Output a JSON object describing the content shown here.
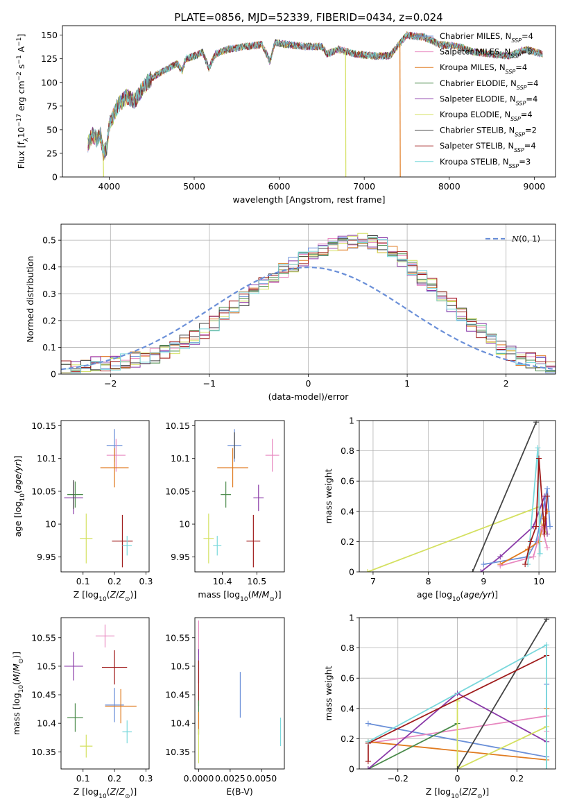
{
  "title": "PLATE=0856, MJD=52339, FIBERID=0434, z=0.024",
  "colors": {
    "Chabrier MILES": "#6a8fd8",
    "Salpeter MILES": "#e888c0",
    "Kroupa MILES": "#e07b20",
    "Chabrier ELODIE": "#4a8a4a",
    "Salpeter ELODIE": "#8a3aa8",
    "Kroupa ELODIE": "#d4e060",
    "Chabrier STELIB": "#444444",
    "Salpeter STELIB": "#a01c1c",
    "Kroupa STELIB": "#7ad8dc"
  },
  "chart_data": [
    {
      "id": "spectrum",
      "type": "line",
      "xlabel": "wavelength [Angstrom, rest frame]",
      "ylabel": "Flux [f_λ10^-17 erg cm^-2 s^-1 A^-1]",
      "xlim": [
        3450,
        9250
      ],
      "ylim": [
        0,
        160
      ],
      "xticks": [
        4000,
        5000,
        6000,
        7000,
        8000,
        9000
      ],
      "yticks": [
        0,
        25,
        50,
        75,
        100,
        125,
        150
      ],
      "legend_position": "upper right",
      "legend": [
        "Chabrier MILES, N_SSP=4",
        "Salpeter MILES, N_SSP=5",
        "Kroupa MILES, N_SSP=4",
        "Chabrier ELODIE, N_SSP=4",
        "Salpeter ELODIE, N_SSP=4",
        "Kroupa ELODIE, N_SSP=4",
        "Chabrier STELIB, N_SSP=2",
        "Salpeter STELIB, N_SSP=4",
        "Kroupa STELIB, N_SSP=3"
      ],
      "continuum": [
        [
          3750,
          35
        ],
        [
          3800,
          45
        ],
        [
          3850,
          40
        ],
        [
          3900,
          45
        ],
        [
          3930,
          25
        ],
        [
          3970,
          30
        ],
        [
          4000,
          55
        ],
        [
          4100,
          75
        ],
        [
          4200,
          85
        ],
        [
          4300,
          80
        ],
        [
          4400,
          95
        ],
        [
          4500,
          105
        ],
        [
          4600,
          110
        ],
        [
          4700,
          115
        ],
        [
          4800,
          120
        ],
        [
          4860,
          112
        ],
        [
          4900,
          125
        ],
        [
          5000,
          128
        ],
        [
          5100,
          132
        ],
        [
          5170,
          115
        ],
        [
          5250,
          130
        ],
        [
          5400,
          135
        ],
        [
          5600,
          138
        ],
        [
          5800,
          140
        ],
        [
          5890,
          122
        ],
        [
          5950,
          142
        ],
        [
          6100,
          140
        ],
        [
          6300,
          138
        ],
        [
          6500,
          138
        ],
        [
          6563,
          130
        ],
        [
          6700,
          135
        ],
        [
          6900,
          130
        ],
        [
          7100,
          128
        ],
        [
          7300,
          128
        ],
        [
          7500,
          150
        ],
        [
          7700,
          148
        ],
        [
          7900,
          140
        ],
        [
          8100,
          138
        ],
        [
          8300,
          132
        ],
        [
          8500,
          130
        ],
        [
          8700,
          128
        ],
        [
          8900,
          135
        ],
        [
          9100,
          130
        ]
      ],
      "dropouts": [
        {
          "x": 3930,
          "y": 0
        },
        {
          "x": 6780,
          "y": 0
        },
        {
          "x": 7420,
          "y": 0
        }
      ]
    },
    {
      "id": "residual-histogram",
      "type": "bar",
      "xlabel": "(data-model)/error",
      "ylabel": "Normed distribution",
      "xlim": [
        -2.5,
        2.5
      ],
      "ylim": [
        0,
        0.56
      ],
      "xticks": [
        -2,
        -1,
        0,
        1,
        2
      ],
      "yticks": [
        0.0,
        0.1,
        0.2,
        0.3,
        0.4,
        0.5
      ],
      "legend": [
        "N(0,1)"
      ],
      "legend_position": "upper right",
      "grid": true,
      "bin_width": 0.1,
      "bins_start": -2.5,
      "base": [
        0.02,
        0.025,
        0.035,
        0.04,
        0.04,
        0.045,
        0.05,
        0.055,
        0.06,
        0.07,
        0.08,
        0.1,
        0.12,
        0.14,
        0.16,
        0.19,
        0.22,
        0.25,
        0.28,
        0.31,
        0.34,
        0.37,
        0.39,
        0.41,
        0.43,
        0.45,
        0.47,
        0.48,
        0.49,
        0.5,
        0.5,
        0.49,
        0.48,
        0.46,
        0.43,
        0.4,
        0.36,
        0.33,
        0.29,
        0.26,
        0.22,
        0.19,
        0.16,
        0.13,
        0.1,
        0.08,
        0.06,
        0.05,
        0.04,
        0.03
      ],
      "gaussian": {
        "mean": 0,
        "sd": 1
      }
    },
    {
      "id": "age-vs-Z",
      "type": "scatter",
      "xlabel": "Z [log10(Z/Z_sun)]",
      "ylabel": "age [log10(age/yr)]",
      "xlim": [
        0.03,
        0.31
      ],
      "ylim": [
        9.927,
        10.158
      ],
      "xticks": [
        0.1,
        0.2,
        0.3
      ],
      "yticks": [
        9.95,
        10.0,
        10.05,
        10.1,
        10.15
      ],
      "points": [
        {
          "s": "Chabrier MILES",
          "x": 0.2,
          "y": 10.12,
          "xe": 0.025,
          "ye": 0.025
        },
        {
          "s": "Salpeter MILES",
          "x": 0.205,
          "y": 10.105,
          "xe": 0.03,
          "ye": 0.025
        },
        {
          "s": "Kroupa MILES",
          "x": 0.2,
          "y": 10.086,
          "xe": 0.045,
          "ye": 0.03
        },
        {
          "s": "Chabrier ELODIE",
          "x": 0.075,
          "y": 10.045,
          "xe": 0.025,
          "ye": 0.02
        },
        {
          "s": "Salpeter ELODIE",
          "x": 0.07,
          "y": 10.04,
          "xe": 0.03,
          "ye": 0.025
        },
        {
          "s": "Chabrier STELIB",
          "x": 0.07,
          "y": 10.045,
          "xe": 0.0,
          "ye": 0.022
        },
        {
          "s": "Kroupa ELODIE",
          "x": 0.11,
          "y": 9.978,
          "xe": 0.02,
          "ye": 0.038
        },
        {
          "s": "Salpeter STELIB",
          "x": 0.225,
          "y": 9.974,
          "xe": 0.033,
          "ye": 0.04
        },
        {
          "s": "Kroupa STELIB",
          "x": 0.24,
          "y": 9.967,
          "xe": 0.015,
          "ye": 0.015
        }
      ]
    },
    {
      "id": "age-vs-mass",
      "type": "scatter",
      "xlabel": "mass [log10(M/M_sun)]",
      "ylabel": "",
      "xlim": [
        10.32,
        10.58
      ],
      "ylim": [
        9.927,
        10.158
      ],
      "xticks": [
        10.4,
        10.5
      ],
      "yticks": [
        9.95,
        10.0,
        10.05,
        10.1,
        10.15
      ],
      "points": [
        {
          "s": "Chabrier MILES",
          "x": 10.435,
          "y": 10.12,
          "xe": 0.02,
          "ye": 0.025
        },
        {
          "s": "Salpeter MILES",
          "x": 10.545,
          "y": 10.105,
          "xe": 0.02,
          "ye": 0.025
        },
        {
          "s": "Kroupa MILES",
          "x": 10.43,
          "y": 10.086,
          "xe": 0.045,
          "ye": 0.03
        },
        {
          "s": "Chabrier ELODIE",
          "x": 10.41,
          "y": 10.045,
          "xe": 0.015,
          "ye": 0.02
        },
        {
          "s": "Salpeter ELODIE",
          "x": 10.505,
          "y": 10.04,
          "xe": 0.015,
          "ye": 0.02
        },
        {
          "s": "Chabrier STELIB",
          "x": 10.435,
          "y": 10.12,
          "xe": 0.0,
          "ye": 0.02
        },
        {
          "s": "Kroupa ELODIE",
          "x": 10.36,
          "y": 9.978,
          "xe": 0.015,
          "ye": 0.038
        },
        {
          "s": "Salpeter STELIB",
          "x": 10.49,
          "y": 9.974,
          "xe": 0.02,
          "ye": 0.04
        },
        {
          "s": "Kroupa STELIB",
          "x": 10.385,
          "y": 9.967,
          "xe": 0.012,
          "ye": 0.015
        }
      ]
    },
    {
      "id": "massweight-vs-age",
      "type": "line",
      "xlabel": "age [log10(age/yr)]",
      "ylabel": "mass weight",
      "xlim": [
        6.75,
        10.3
      ],
      "ylim": [
        0,
        1
      ],
      "xticks": [
        7,
        8,
        9,
        10
      ],
      "yticks": [
        0.0,
        0.2,
        0.4,
        0.6,
        0.8,
        1.0
      ],
      "grid": true,
      "series": [
        {
          "s": "Kroupa ELODIE",
          "x": [
            6.9,
            10.0,
            10.05,
            10.15
          ],
          "y": [
            0.0,
            0.43,
            0.3,
            0.25
          ]
        },
        {
          "s": "Chabrier STELIB",
          "x": [
            8.8,
            9.95
          ],
          "y": [
            0.0,
            0.99
          ]
        },
        {
          "s": "Salpeter ELODIE",
          "x": [
            8.95,
            9.3,
            9.9,
            10.1,
            10.15
          ],
          "y": [
            0.0,
            0.1,
            0.3,
            0.5,
            0.25
          ]
        },
        {
          "s": "Chabrier MILES",
          "x": [
            9.0,
            9.8,
            9.95,
            10.15,
            10.2
          ],
          "y": [
            0.05,
            0.1,
            0.2,
            0.55,
            0.3
          ]
        },
        {
          "s": "Kroupa MILES",
          "x": [
            9.3,
            9.8,
            10.0,
            10.1,
            10.15
          ],
          "y": [
            0.05,
            0.15,
            0.2,
            0.35,
            0.4
          ]
        },
        {
          "s": "Salpeter MILES",
          "x": [
            9.3,
            9.9,
            10.05,
            10.15
          ],
          "y": [
            0.04,
            0.1,
            0.3,
            0.16
          ]
        },
        {
          "s": "Kroupa STELIB",
          "x": [
            9.8,
            9.98,
            10.02
          ],
          "y": [
            0.05,
            0.82,
            0.12
          ]
        },
        {
          "s": "Salpeter STELIB",
          "x": [
            9.75,
            9.85,
            9.95,
            10.0,
            10.1,
            10.15
          ],
          "y": [
            0.05,
            0.2,
            0.3,
            0.75,
            0.25,
            0.5
          ]
        }
      ]
    },
    {
      "id": "mass-vs-Z",
      "type": "scatter",
      "xlabel": "Z [log10(Z/Z_sun)]",
      "ylabel": "mass [log10(M/M_sun)]",
      "xlim": [
        0.03,
        0.31
      ],
      "ylim": [
        10.32,
        10.585
      ],
      "xticks": [
        0.1,
        0.2,
        0.3
      ],
      "yticks": [
        10.35,
        10.4,
        10.45,
        10.5,
        10.55
      ],
      "points": [
        {
          "s": "Salpeter MILES",
          "x": 0.17,
          "y": 10.553,
          "xe": 0.03,
          "ye": 0.02
        },
        {
          "s": "Salpeter ELODIE",
          "x": 0.07,
          "y": 10.5,
          "xe": 0.03,
          "ye": 0.025
        },
        {
          "s": "Salpeter STELIB",
          "x": 0.2,
          "y": 10.498,
          "xe": 0.04,
          "ye": 0.03
        },
        {
          "s": "Chabrier ELODIE",
          "x": 0.075,
          "y": 10.41,
          "xe": 0.025,
          "ye": 0.025
        },
        {
          "s": "Chabrier MILES",
          "x": 0.2,
          "y": 10.432,
          "xe": 0.03,
          "ye": 0.03
        },
        {
          "s": "Kroupa MILES",
          "x": 0.22,
          "y": 10.43,
          "xe": 0.05,
          "ye": 0.03
        },
        {
          "s": "Kroupa STELIB",
          "x": 0.24,
          "y": 10.385,
          "xe": 0.015,
          "ye": 0.02
        },
        {
          "s": "Kroupa ELODIE",
          "x": 0.11,
          "y": 10.36,
          "xe": 0.02,
          "ye": 0.02
        }
      ]
    },
    {
      "id": "mass-vs-EBV",
      "type": "scatter",
      "xlabel": "E(B-V)",
      "ylabel": "",
      "xlim": [
        -0.0003,
        0.0068
      ],
      "ylim": [
        10.32,
        10.585
      ],
      "xticks": [
        0.0,
        0.0025,
        0.005
      ],
      "xticklabels": [
        "0.0000",
        "0.0025",
        "0.0050"
      ],
      "yticks": [
        10.35,
        10.4,
        10.45,
        10.5,
        10.55
      ],
      "points": [
        {
          "s": "Salpeter MILES",
          "x": 0.0,
          "y": 10.55,
          "xe": 0,
          "ye": 0.03
        },
        {
          "s": "Salpeter ELODIE",
          "x": 0.0,
          "y": 10.5,
          "xe": 0,
          "ye": 0.03
        },
        {
          "s": "Salpeter STELIB",
          "x": 0.0,
          "y": 10.47,
          "xe": 0,
          "ye": 0.04
        },
        {
          "s": "Chabrier ELODIE",
          "x": 0.0,
          "y": 10.41,
          "xe": 0,
          "ye": 0.03
        },
        {
          "s": "Kroupa MILES",
          "x": 0.0,
          "y": 10.4,
          "xe": 0,
          "ye": 0.02
        },
        {
          "s": "Kroupa ELODIE",
          "x": 0.0,
          "y": 10.36,
          "xe": 0,
          "ye": 0.03
        },
        {
          "s": "Chabrier MILES",
          "x": 0.0033,
          "y": 10.45,
          "xe": 0,
          "ye": 0.04
        },
        {
          "s": "Kroupa STELIB",
          "x": 0.0065,
          "y": 10.385,
          "xe": 0,
          "ye": 0.025
        }
      ]
    },
    {
      "id": "massweight-vs-Z",
      "type": "line",
      "xlabel": "Z [log10(Z/Z_sun)]",
      "ylabel": "mass weight",
      "xlim": [
        -0.33,
        0.33
      ],
      "ylim": [
        0,
        1
      ],
      "xticks": [
        -0.2,
        0.0,
        0.2
      ],
      "yticks": [
        0.0,
        0.2,
        0.4,
        0.6,
        0.8,
        1.0
      ],
      "grid": true,
      "series": [
        {
          "s": "Chabrier MILES",
          "x": [
            -0.3,
            0.3,
            0.3
          ],
          "y": [
            0.3,
            0.08,
            0.56
          ]
        },
        {
          "s": "Salpeter MILES",
          "x": [
            -0.3,
            0.3,
            0.3
          ],
          "y": [
            0.17,
            0.35,
            0.25
          ]
        },
        {
          "s": "Kroupa MILES",
          "x": [
            -0.3,
            0.3,
            0.3
          ],
          "y": [
            0.18,
            0.06,
            0.4
          ]
        },
        {
          "s": "Chabrier ELODIE",
          "x": [
            -0.3,
            0.0
          ],
          "y": [
            0.0,
            0.3
          ]
        },
        {
          "s": "Salpeter ELODIE",
          "x": [
            -0.3,
            0.0,
            0.3
          ],
          "y": [
            0.0,
            0.5,
            0.18
          ]
        },
        {
          "s": "Kroupa ELODIE",
          "x": [
            0.0,
            0.0,
            0.3,
            0.3
          ],
          "y": [
            0.45,
            0.0,
            0.28,
            0.0
          ]
        },
        {
          "s": "Chabrier STELIB",
          "x": [
            0.0,
            0.3
          ],
          "y": [
            0.0,
            0.99
          ]
        },
        {
          "s": "Salpeter STELIB",
          "x": [
            -0.3,
            -0.3,
            0.3
          ],
          "y": [
            0.05,
            0.17,
            0.75
          ]
        },
        {
          "s": "Kroupa STELIB",
          "x": [
            -0.3,
            0.3,
            0.3
          ],
          "y": [
            0.18,
            0.82,
            0.0
          ]
        }
      ]
    }
  ]
}
